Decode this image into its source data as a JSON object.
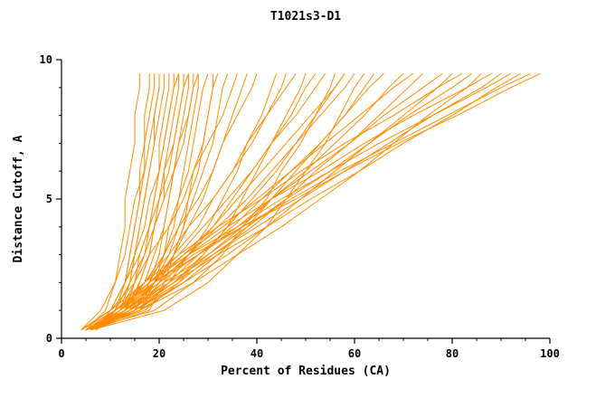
{
  "window": {
    "background": "#ffffff"
  },
  "chart_data": {
    "type": "line",
    "title": "T1021s3-D1",
    "xlabel": "Percent of Residues (CA)",
    "ylabel": "Distance Cutoff, A",
    "xlim": [
      0,
      100
    ],
    "ylim": [
      0,
      10
    ],
    "x_major_ticks": [
      0,
      20,
      40,
      60,
      80,
      100
    ],
    "x_minor_step": 5,
    "y_major_ticks": [
      0,
      5,
      10
    ],
    "y_minor_step": 1,
    "grid": false,
    "legend": "none",
    "line_color": "#ff8c00",
    "axis_color": "#000000",
    "cutoffs": [
      0.3,
      1,
      2,
      3,
      4,
      5,
      6,
      7,
      8,
      9,
      9.5
    ],
    "series": [
      {
        "percents": [
          5,
          11,
          13,
          14,
          15,
          16,
          16,
          17,
          17,
          18,
          18
        ]
      },
      {
        "percents": [
          5,
          12,
          14,
          15,
          16,
          17,
          18,
          19,
          19,
          20,
          20
        ]
      },
      {
        "percents": [
          5,
          13,
          15,
          17,
          18,
          19,
          20,
          20,
          21,
          22,
          22
        ]
      },
      {
        "percents": [
          5,
          14,
          16,
          18,
          19,
          21,
          21,
          22,
          23,
          24,
          24
        ]
      },
      {
        "percents": [
          5,
          15,
          18,
          20,
          21,
          22,
          23,
          24,
          25,
          26,
          26
        ]
      },
      {
        "percents": [
          5,
          16,
          19,
          21,
          22,
          24,
          25,
          26,
          27,
          28,
          28
        ]
      },
      {
        "percents": [
          6,
          11,
          13,
          14,
          15,
          16,
          17,
          17,
          18,
          19,
          19
        ]
      },
      {
        "percents": [
          6,
          11,
          14,
          15,
          16,
          17,
          18,
          19,
          20,
          21,
          21
        ]
      },
      {
        "percents": [
          6,
          12,
          15,
          16,
          18,
          19,
          20,
          21,
          22,
          23,
          23
        ]
      },
      {
        "percents": [
          6,
          13,
          16,
          18,
          19,
          20,
          22,
          23,
          24,
          25,
          25
        ]
      },
      {
        "percents": [
          6,
          13,
          17,
          19,
          21,
          22,
          23,
          25,
          26,
          27,
          27
        ]
      },
      {
        "percents": [
          6,
          15,
          18,
          21,
          23,
          24,
          26,
          27,
          28,
          29,
          30
        ]
      },
      {
        "percents": [
          6,
          15,
          19,
          22,
          24,
          26,
          27,
          29,
          30,
          31,
          32
        ]
      },
      {
        "percents": [
          6,
          16,
          20,
          23,
          25,
          27,
          29,
          31,
          32,
          33,
          34
        ]
      },
      {
        "percents": [
          4,
          8,
          11,
          13,
          14,
          15,
          17,
          18,
          19,
          20,
          20
        ]
      },
      {
        "percents": [
          4,
          10,
          13,
          15,
          17,
          18,
          20,
          21,
          22,
          23,
          24
        ]
      },
      {
        "percents": [
          4,
          11,
          14,
          17,
          19,
          21,
          23,
          24,
          26,
          27,
          28
        ]
      },
      {
        "percents": [
          4,
          10,
          13,
          16,
          18,
          20,
          21,
          23,
          24,
          25,
          26
        ]
      },
      {
        "percents": [
          5,
          9,
          11,
          12,
          13,
          13,
          14,
          15,
          15,
          16,
          16
        ]
      },
      {
        "percents": [
          6,
          18,
          21,
          23,
          25,
          26,
          28,
          29,
          30,
          31,
          31
        ]
      },
      {
        "percents": [
          5,
          14,
          19,
          23,
          26,
          29,
          31,
          33,
          35,
          37,
          38
        ]
      },
      {
        "percents": [
          5,
          16,
          22,
          26,
          30,
          33,
          36,
          38,
          41,
          43,
          44
        ]
      },
      {
        "percents": [
          5,
          17,
          24,
          29,
          34,
          37,
          40,
          43,
          46,
          49,
          50
        ]
      },
      {
        "percents": [
          5,
          19,
          27,
          33,
          37,
          42,
          45,
          49,
          52,
          55,
          56
        ]
      },
      {
        "percents": [
          5,
          12,
          17,
          21,
          24,
          28,
          31,
          33,
          36,
          39,
          40
        ]
      },
      {
        "percents": [
          5,
          13,
          19,
          23,
          28,
          31,
          35,
          38,
          42,
          45,
          46
        ]
      },
      {
        "percents": [
          5,
          14,
          21,
          26,
          31,
          35,
          39,
          43,
          47,
          50,
          52
        ]
      },
      {
        "percents": [
          5,
          15,
          23,
          29,
          34,
          39,
          44,
          48,
          52,
          56,
          58
        ]
      },
      {
        "percents": [
          5,
          16,
          25,
          32,
          38,
          43,
          48,
          53,
          58,
          62,
          64
        ]
      },
      {
        "percents": [
          6,
          11,
          17,
          22,
          26,
          31,
          35,
          39,
          42,
          46,
          48
        ]
      },
      {
        "percents": [
          6,
          12,
          18,
          24,
          29,
          34,
          39,
          43,
          48,
          52,
          54
        ]
      },
      {
        "percents": [
          6,
          13,
          20,
          26,
          32,
          38,
          43,
          48,
          53,
          58,
          60
        ]
      },
      {
        "percents": [
          6,
          14,
          22,
          28,
          35,
          41,
          47,
          53,
          58,
          63,
          66
        ]
      },
      {
        "percents": [
          6,
          14,
          23,
          30,
          37,
          43,
          50,
          56,
          62,
          67,
          70
        ]
      },
      {
        "percents": [
          4,
          10,
          15,
          18,
          22,
          25,
          27,
          30,
          33,
          35,
          36
        ]
      },
      {
        "percents": [
          6,
          21,
          30,
          36,
          42,
          46,
          50,
          54,
          57,
          60,
          62
        ]
      },
      {
        "percents": [
          5,
          12,
          19,
          25,
          31,
          36,
          41,
          46,
          51,
          56,
          58
        ]
      },
      {
        "percents": [
          6,
          11,
          18,
          25,
          33,
          40,
          47,
          54,
          61,
          68,
          72
        ]
      },
      {
        "percents": [
          6,
          15,
          24,
          31,
          39,
          46,
          52,
          59,
          65,
          71,
          74
        ]
      },
      {
        "percents": [
          6,
          15,
          25,
          34,
          42,
          49,
          56,
          63,
          70,
          77,
          80
        ]
      },
      {
        "percents": [
          6,
          16,
          27,
          36,
          45,
          53,
          61,
          68,
          75,
          83,
          86
        ]
      },
      {
        "percents": [
          7,
          12,
          20,
          28,
          36,
          43,
          51,
          59,
          66,
          74,
          78
        ]
      },
      {
        "percents": [
          7,
          13,
          21,
          30,
          38,
          46,
          55,
          63,
          71,
          80,
          84
        ]
      },
      {
        "percents": [
          7,
          13,
          22,
          31,
          40,
          49,
          58,
          67,
          76,
          86,
          90
        ]
      },
      {
        "percents": [
          7,
          14,
          23,
          32,
          42,
          51,
          61,
          70,
          80,
          89,
          94
        ]
      },
      {
        "percents": [
          7,
          10,
          17,
          24,
          32,
          41,
          49,
          58,
          68,
          77,
          82
        ]
      },
      {
        "percents": [
          7,
          11,
          18,
          26,
          34,
          43,
          53,
          62,
          72,
          83,
          88
        ]
      },
      {
        "percents": [
          7,
          11,
          18,
          26,
          36,
          45,
          55,
          65,
          76,
          87,
          92
        ]
      },
      {
        "percents": [
          7,
          11,
          19,
          27,
          37,
          47,
          57,
          68,
          79,
          90,
          96
        ]
      },
      {
        "percents": [
          7,
          11,
          19,
          28,
          37,
          48,
          58,
          69,
          81,
          92,
          98
        ]
      }
    ]
  }
}
